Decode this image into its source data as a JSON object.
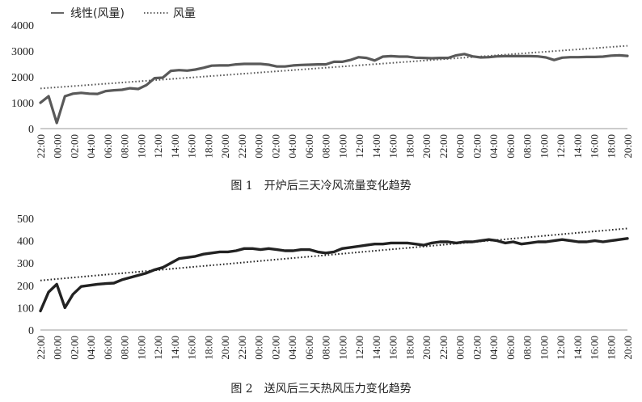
{
  "chart_data": [
    {
      "type": "line",
      "caption": "图 1　开炉后三天冷风流量变化趋势",
      "legend": {
        "position": "top-left",
        "entries": [
          "线性(风量)",
          "风量"
        ]
      },
      "ylim": [
        0,
        4000
      ],
      "yticks": [
        0,
        1000,
        2000,
        3000,
        4000
      ],
      "x_tick_labels": [
        "22:00",
        "00:00",
        "02:00",
        "04:00",
        "06:00",
        "08:00",
        "10:00",
        "12:00",
        "14:00",
        "16:00",
        "18:00",
        "20:00",
        "22:00",
        "00:00",
        "02:00",
        "04:00",
        "06:00",
        "08:00",
        "10:00",
        "12:00",
        "14:00",
        "16:00",
        "18:00",
        "20:00",
        "22:00",
        "00:00",
        "02:00",
        "04:00",
        "06:00",
        "08:00",
        "10:00",
        "12:00",
        "14:00",
        "16:00",
        "18:00",
        "20:00"
      ],
      "series": [
        {
          "name": "风量",
          "style": "solid",
          "color": "#595959",
          "values": [
            1000,
            1250,
            220,
            1250,
            1350,
            1380,
            1350,
            1340,
            1450,
            1480,
            1500,
            1560,
            1530,
            1680,
            1950,
            1970,
            2230,
            2260,
            2240,
            2280,
            2350,
            2430,
            2440,
            2440,
            2480,
            2500,
            2500,
            2500,
            2470,
            2400,
            2400,
            2440,
            2460,
            2470,
            2480,
            2480,
            2580,
            2580,
            2650,
            2760,
            2730,
            2630,
            2780,
            2800,
            2780,
            2780,
            2740,
            2730,
            2720,
            2730,
            2730,
            2830,
            2880,
            2790,
            2750,
            2760,
            2790,
            2800,
            2800,
            2800,
            2800,
            2790,
            2750,
            2650,
            2740,
            2760,
            2760,
            2770,
            2770,
            2780,
            2820,
            2830,
            2810
          ]
        },
        {
          "name": "线性(风量)",
          "style": "dotted",
          "color": "#595959",
          "trend": [
            1550,
            3200
          ]
        }
      ]
    },
    {
      "type": "line",
      "caption": "图 2　送风后三天热风压力变化趋势",
      "ylim": [
        0,
        500
      ],
      "yticks": [
        0,
        100,
        200,
        300,
        400,
        500
      ],
      "x_tick_labels": [
        "22:00",
        "00:00",
        "02:00",
        "04:00",
        "06:00",
        "08:00",
        "10:00",
        "12:00",
        "14:00",
        "16:00",
        "18:00",
        "20:00",
        "22:00",
        "00:00",
        "02:00",
        "04:00",
        "06:00",
        "08:00",
        "10:00",
        "12:00",
        "14:00",
        "16:00",
        "18:00",
        "20:00",
        "22:00",
        "00:00",
        "02:00",
        "04:00",
        "06:00",
        "08:00",
        "10:00",
        "12:00",
        "14:00",
        "16:00",
        "18:00",
        "20:00"
      ],
      "series": [
        {
          "style": "solid",
          "color": "#222222",
          "values": [
            85,
            170,
            205,
            100,
            160,
            195,
            200,
            205,
            208,
            210,
            225,
            235,
            245,
            255,
            270,
            280,
            300,
            320,
            325,
            330,
            340,
            345,
            350,
            350,
            355,
            365,
            365,
            360,
            365,
            360,
            355,
            355,
            360,
            360,
            350,
            345,
            350,
            365,
            370,
            375,
            380,
            385,
            385,
            390,
            390,
            390,
            385,
            380,
            390,
            395,
            395,
            390,
            395,
            395,
            400,
            405,
            400,
            390,
            395,
            385,
            390,
            395,
            395,
            400,
            405,
            400,
            395,
            395,
            400,
            395,
            400,
            405,
            410
          ]
        },
        {
          "style": "dotted",
          "color": "#222222",
          "trend": [
            222,
            455
          ]
        }
      ]
    }
  ]
}
